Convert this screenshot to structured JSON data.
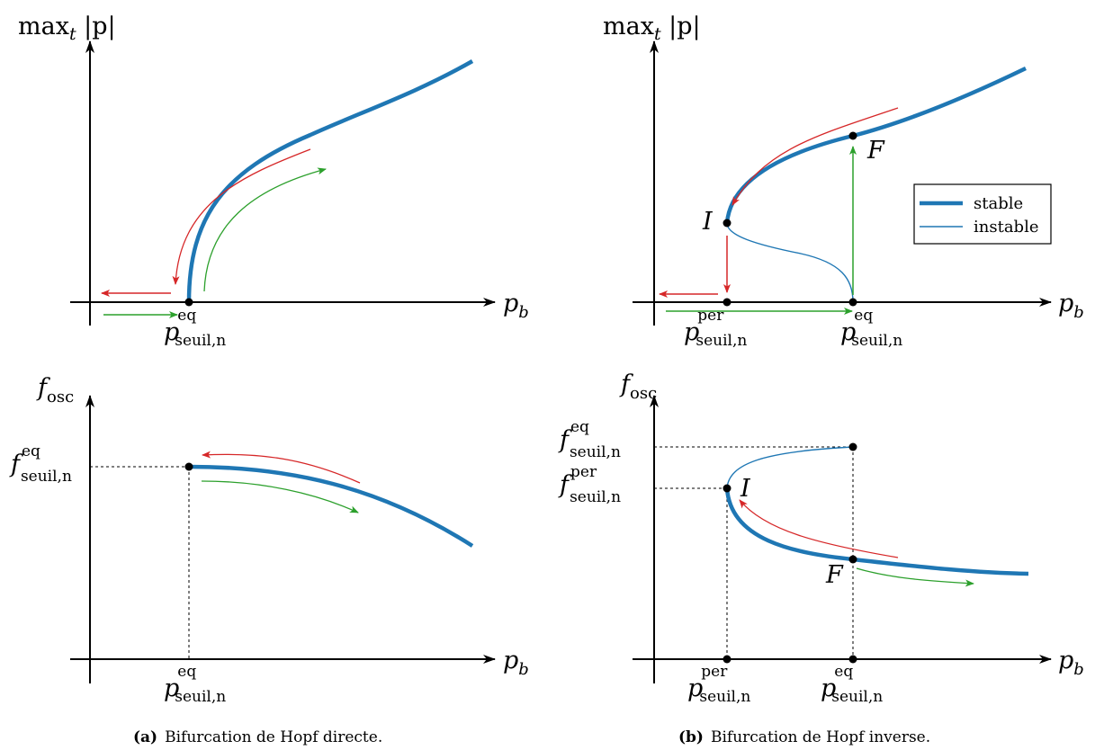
{
  "colors": {
    "curve": "#1f77b4",
    "arrow_red": "#d62728",
    "arrow_green": "#2ca02c",
    "axis": "#000000"
  },
  "axes": {
    "y_amplitude": {
      "base": "max",
      "sub": "t",
      "rest": " |p|"
    },
    "y_frequency": {
      "base": "f",
      "sub": "osc"
    },
    "x": {
      "base": "p",
      "sub": "b"
    }
  },
  "thresholds": {
    "p_eq": {
      "base": "p",
      "sup": "eq",
      "sub": "seuil,n"
    },
    "p_per": {
      "base": "p",
      "sup": "per",
      "sub": "seuil,n"
    },
    "f_eq": {
      "base": "f",
      "sup": "eq",
      "sub": "seuil,n"
    },
    "f_per": {
      "base": "f",
      "sup": "per",
      "sub": "seuil,n"
    }
  },
  "points": {
    "I": "I",
    "F": "F"
  },
  "legend": {
    "stable": "stable",
    "instable": "instable"
  },
  "captions": {
    "a": {
      "tag": "(a)",
      "text": "Bifurcation de Hopf directe."
    },
    "b": {
      "tag": "(b)",
      "text": "Bifurcation de Hopf inverse."
    }
  }
}
